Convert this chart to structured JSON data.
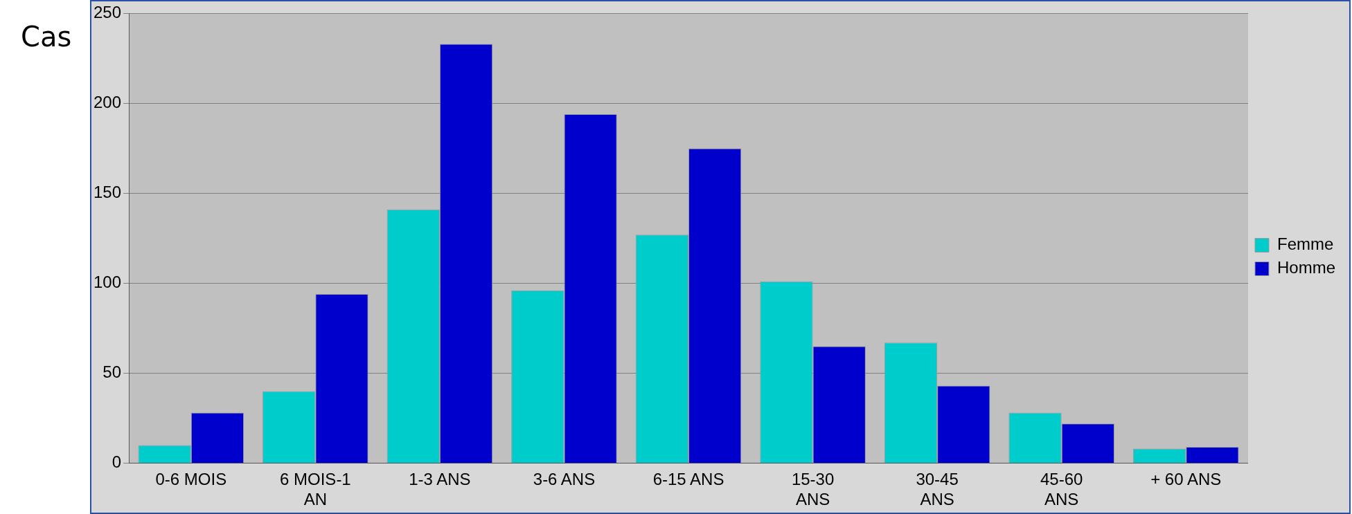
{
  "chart_data": {
    "type": "bar",
    "ylabel": "Cas",
    "categories": [
      "0-6 MOIS",
      "6 MOIS-1 AN",
      "1-3 ANS",
      "3-6 ANS",
      "6-15 ANS",
      "15-30 ANS",
      "30-45 ANS",
      "45-60 ANS",
      "+ 60 ANS"
    ],
    "series": [
      {
        "name": "Femme",
        "color": "#00cccc",
        "values": [
          10,
          40,
          141,
          96,
          127,
          101,
          67,
          28,
          8
        ]
      },
      {
        "name": "Homme",
        "color": "#0000cc",
        "values": [
          28,
          94,
          233,
          194,
          175,
          65,
          43,
          22,
          9
        ]
      }
    ],
    "ylim": [
      0,
      250
    ],
    "yticks": [
      0,
      50,
      100,
      150,
      200,
      250
    ],
    "grid": "y",
    "legend": "right"
  }
}
